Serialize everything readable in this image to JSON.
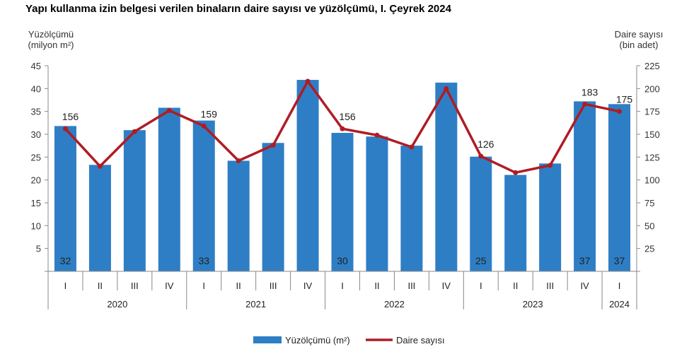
{
  "chart_data": {
    "type": "bar",
    "title": "Yapı kullanma izin belgesi verilen binaların daire sayısı ve yüzölçümü, I. Çeyrek 2024",
    "left_axis_label": [
      "Yüzölçümü",
      "(milyon m²)"
    ],
    "right_axis_label": [
      "Daire sayısı",
      "(bin adet)"
    ],
    "ylim_left": [
      0,
      45
    ],
    "yticks_left": [
      5,
      10,
      15,
      20,
      25,
      30,
      35,
      40,
      45
    ],
    "ylim_right": [
      0,
      225
    ],
    "yticks_right": [
      25,
      50,
      75,
      100,
      125,
      150,
      175,
      200,
      225
    ],
    "categories": [
      "I",
      "II",
      "III",
      "IV",
      "I",
      "II",
      "III",
      "IV",
      "I",
      "II",
      "III",
      "IV",
      "I",
      "II",
      "III",
      "IV",
      "I"
    ],
    "years": [
      {
        "label": "2020",
        "count": 4
      },
      {
        "label": "2021",
        "count": 4
      },
      {
        "label": "2022",
        "count": 4
      },
      {
        "label": "2023",
        "count": 4
      },
      {
        "label": "2024",
        "count": 1
      }
    ],
    "series": [
      {
        "name": "Yüzölçümü (m²)",
        "type": "bar",
        "axis": "left",
        "color": "#2e7ec5",
        "values": [
          31.8,
          23.3,
          30.9,
          35.8,
          33.0,
          24.2,
          28.1,
          41.9,
          30.3,
          29.5,
          27.5,
          41.3,
          25.1,
          21.1,
          23.6,
          37.2,
          36.6
        ],
        "labels": [
          "32",
          "",
          "",
          "",
          "33",
          "",
          "",
          "",
          "30",
          "",
          "",
          "",
          "25",
          "",
          "",
          "37",
          "37"
        ]
      },
      {
        "name": "Daire sayısı",
        "type": "line",
        "axis": "right",
        "color": "#b01c24",
        "values": [
          156,
          115,
          153,
          176,
          159,
          121,
          138,
          208,
          156,
          149,
          136,
          200,
          126,
          108,
          116,
          183,
          175
        ],
        "labels": [
          "156",
          "",
          "",
          "",
          "159",
          "",
          "",
          "",
          "156",
          "",
          "",
          "",
          "126",
          "",
          "",
          "183",
          "175"
        ]
      }
    ],
    "legend_position": "bottom-center",
    "grid": false
  }
}
